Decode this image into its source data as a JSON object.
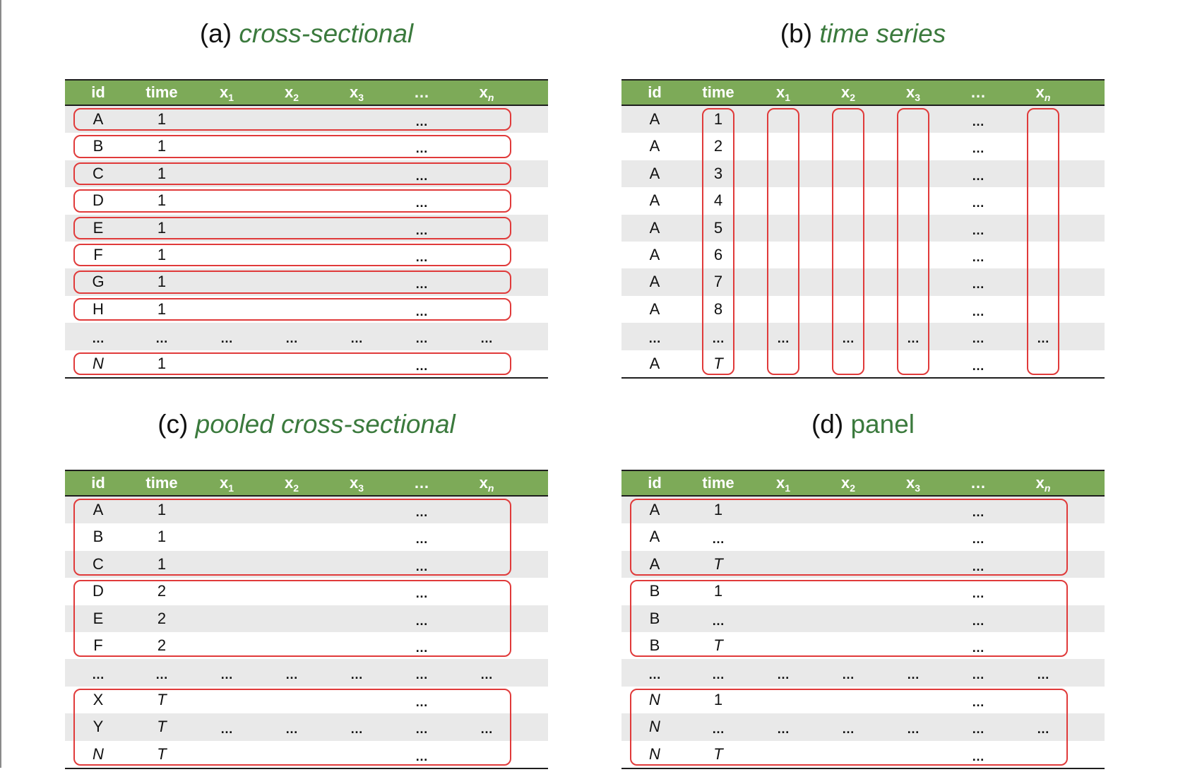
{
  "colors": {
    "header_fill": "#7daa58",
    "header_text": "#ffffff",
    "title_accent": "#3b7a3d",
    "stripe": "#e9e9e9",
    "highlight_box": "#e03a3a"
  },
  "headers": [
    {
      "text": "id",
      "sub": ""
    },
    {
      "text": "time",
      "sub": ""
    },
    {
      "text": "x",
      "sub": "1"
    },
    {
      "text": "x",
      "sub": "2"
    },
    {
      "text": "x",
      "sub": "3"
    },
    {
      "text": "…",
      "sub": ""
    },
    {
      "text": "x",
      "sub": "n"
    }
  ],
  "panels": [
    {
      "key": "a",
      "prefix": "(a)",
      "name": "cross-sectional",
      "italic": true,
      "rows": [
        [
          "A",
          "1",
          "",
          "",
          "",
          "…",
          ""
        ],
        [
          "B",
          "1",
          "",
          "",
          "",
          "…",
          ""
        ],
        [
          "C",
          "1",
          "",
          "",
          "",
          "…",
          ""
        ],
        [
          "D",
          "1",
          "",
          "",
          "",
          "…",
          ""
        ],
        [
          "E",
          "1",
          "",
          "",
          "",
          "…",
          ""
        ],
        [
          "F",
          "1",
          "",
          "",
          "",
          "…",
          ""
        ],
        [
          "G",
          "1",
          "",
          "",
          "",
          "…",
          ""
        ],
        [
          "H",
          "1",
          "",
          "",
          "",
          "…",
          ""
        ],
        [
          "…",
          "…",
          "…",
          "…",
          "…",
          "…",
          "…"
        ],
        [
          "N",
          "1",
          "",
          "",
          "",
          "…",
          ""
        ]
      ],
      "italic_cells": [
        [
          9,
          0
        ]
      ],
      "highlight": "rows",
      "groups": [
        [
          0,
          0
        ],
        [
          1,
          1
        ],
        [
          2,
          2
        ],
        [
          3,
          3
        ],
        [
          4,
          4
        ],
        [
          5,
          5
        ],
        [
          6,
          6
        ],
        [
          7,
          7
        ],
        [
          9,
          9
        ]
      ]
    },
    {
      "key": "b",
      "prefix": "(b)",
      "name": "time series",
      "italic": true,
      "rows": [
        [
          "A",
          "1",
          "",
          "",
          "",
          "…",
          ""
        ],
        [
          "A",
          "2",
          "",
          "",
          "",
          "…",
          ""
        ],
        [
          "A",
          "3",
          "",
          "",
          "",
          "…",
          ""
        ],
        [
          "A",
          "4",
          "",
          "",
          "",
          "…",
          ""
        ],
        [
          "A",
          "5",
          "",
          "",
          "",
          "…",
          ""
        ],
        [
          "A",
          "6",
          "",
          "",
          "",
          "…",
          ""
        ],
        [
          "A",
          "7",
          "",
          "",
          "",
          "…",
          ""
        ],
        [
          "A",
          "8",
          "",
          "",
          "",
          "…",
          ""
        ],
        [
          "…",
          "…",
          "…",
          "…",
          "…",
          "…",
          "…"
        ],
        [
          "A",
          "T",
          "",
          "",
          "",
          "…",
          ""
        ]
      ],
      "italic_cells": [
        [
          9,
          1
        ]
      ],
      "highlight": "columns",
      "groups": [
        1,
        2,
        3,
        4,
        6
      ]
    },
    {
      "key": "c",
      "prefix": "(c)",
      "name": "pooled cross-sectional",
      "italic": true,
      "rows": [
        [
          "A",
          "1",
          "",
          "",
          "",
          "…",
          ""
        ],
        [
          "B",
          "1",
          "",
          "",
          "",
          "…",
          ""
        ],
        [
          "C",
          "1",
          "",
          "",
          "",
          "…",
          ""
        ],
        [
          "D",
          "2",
          "",
          "",
          "",
          "…",
          ""
        ],
        [
          "E",
          "2",
          "",
          "",
          "",
          "…",
          ""
        ],
        [
          "F",
          "2",
          "",
          "",
          "",
          "…",
          ""
        ],
        [
          "…",
          "…",
          "…",
          "…",
          "…",
          "…",
          "…"
        ],
        [
          "X",
          "T",
          "",
          "",
          "",
          "…",
          ""
        ],
        [
          "Y",
          "T",
          "…",
          "…",
          "…",
          "…",
          "…"
        ],
        [
          "N",
          "T",
          "",
          "",
          "",
          "…",
          ""
        ]
      ],
      "italic_cells": [
        [
          7,
          1
        ],
        [
          8,
          1
        ],
        [
          9,
          0
        ],
        [
          9,
          1
        ]
      ],
      "highlight": "rows",
      "groups": [
        [
          0,
          2
        ],
        [
          3,
          5
        ],
        [
          7,
          9
        ]
      ]
    },
    {
      "key": "d",
      "prefix": "(d)",
      "name": "panel",
      "italic": false,
      "rows": [
        [
          "A",
          "1",
          "",
          "",
          "",
          "…",
          ""
        ],
        [
          "A",
          "…",
          "",
          "",
          "",
          "…",
          ""
        ],
        [
          "A",
          "T",
          "",
          "",
          "",
          "…",
          ""
        ],
        [
          "B",
          "1",
          "",
          "",
          "",
          "…",
          ""
        ],
        [
          "B",
          "…",
          "",
          "",
          "",
          "…",
          ""
        ],
        [
          "B",
          "T",
          "",
          "",
          "",
          "…",
          ""
        ],
        [
          "…",
          "…",
          "…",
          "…",
          "…",
          "…",
          "…"
        ],
        [
          "N",
          "1",
          "",
          "",
          "",
          "…",
          ""
        ],
        [
          "N",
          "…",
          "…",
          "…",
          "…",
          "…",
          "…"
        ],
        [
          "N",
          "T",
          "",
          "",
          "",
          "…",
          ""
        ]
      ],
      "italic_cells": [
        [
          2,
          1
        ],
        [
          5,
          1
        ],
        [
          7,
          0
        ],
        [
          8,
          0
        ],
        [
          9,
          0
        ],
        [
          9,
          1
        ]
      ],
      "highlight": "rows",
      "groups": [
        [
          0,
          2
        ],
        [
          3,
          5
        ],
        [
          7,
          9
        ]
      ]
    }
  ]
}
